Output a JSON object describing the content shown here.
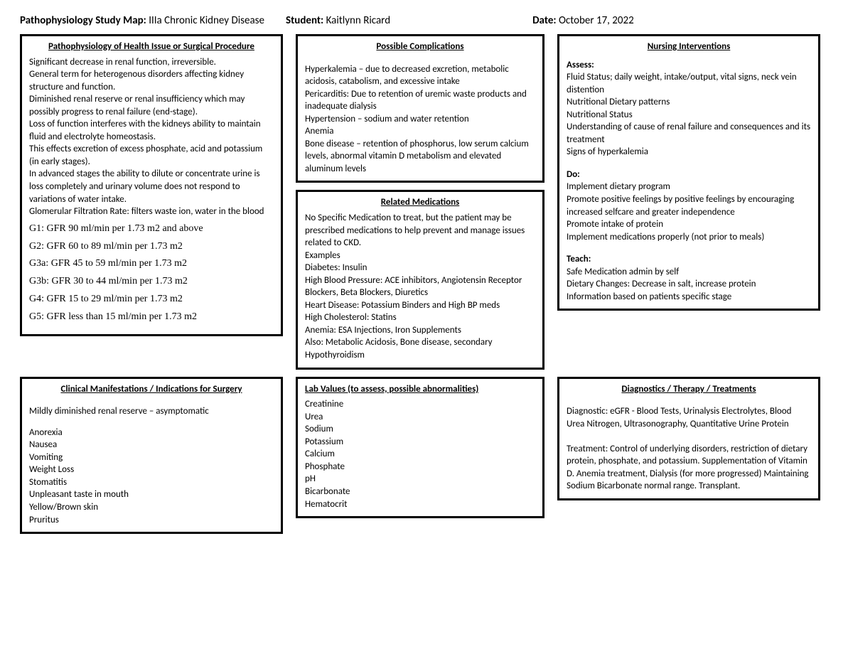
{
  "header": {
    "title_label": "Pathophysiology Study Map:",
    "title_value": "IIIa Chronic Kidney Disease",
    "student_label": "Student:",
    "student_value": "Kaitlynn Ricard",
    "date_label": "Date:",
    "date_value": "October 17, 2022"
  },
  "patho": {
    "title": "Pathophysiology of Health Issue or Surgical Procedure",
    "body": [
      "Significant decrease in renal function, irreversible.",
      "General term for heterogenous disorders affecting kidney structure and function.",
      "Diminished renal reserve or renal insufficiency which may possibly progress to renal failure (end-stage).",
      "Loss of function interferes with the kidneys ability to maintain fluid and electrolyte homeostasis.",
      "This effects excretion of excess phosphate, acid and potassium (in early stages).",
      "In advanced stages the ability to dilute or concentrate urine is loss completely and urinary volume does not respond to variations of water intake.",
      "Glomerular Filtration Rate: filters waste ion, water in the blood"
    ],
    "gfr": [
      "G1: GFR 90 ml/min per 1.73 m2 and above",
      "G2: GFR 60 to 89 ml/min per 1.73 m2",
      "G3a: GFR 45 to 59 ml/min per 1.73 m2",
      "G3b: GFR 30 to 44 ml/min per 1.73 m2",
      "G4: GFR 15 to 29 ml/min per 1.73 m2",
      "G5: GFR less than 15 ml/min per 1.73 m2"
    ]
  },
  "complications": {
    "title": "Possible Complications",
    "body": [
      "Hyperkalemia – due to decreased excretion, metabolic acidosis, catabolism, and excessive intake",
      "Pericarditis: Due to retention of uremic waste products and inadequate dialysis",
      "Hypertension – sodium and water retention",
      "Anemia",
      "Bone disease – retention of phosphorus, low serum calcium levels, abnormal vitamin D metabolism and elevated aluminum levels"
    ]
  },
  "meds": {
    "title": "Related Medications",
    "body": [
      "No Specific Medication to treat, but the patient may be prescribed medications to help prevent and manage issues related to CKD.",
      "Examples",
      "Diabetes: Insulin",
      "High Blood Pressure: ACE inhibitors, Angiotensin Receptor Blockers, Beta Blockers, Diuretics",
      "Heart Disease: Potassium Binders and High BP meds",
      "High Cholesterol: Statins",
      "Anemia: ESA Injections, Iron Supplements",
      "Also: Metabolic Acidosis, Bone disease, secondary Hypothyroidism"
    ]
  },
  "nursing": {
    "title": "Nursing Interventions",
    "assess_label": "Assess:",
    "assess": [
      "Fluid Status; daily weight, intake/output, vital signs, neck vein distention",
      "Nutritional Dietary patterns",
      "Nutritional Status",
      "Understanding of cause of renal failure and consequences and its treatment",
      "Signs of hyperkalemia"
    ],
    "do_label": "Do:",
    "do": [
      "Implement dietary program",
      "Promote positive feelings by positive feelings by encouraging increased selfcare and greater independence",
      "Promote intake of protein",
      "Implement medications properly (not prior to meals)"
    ],
    "teach_label": "Teach:",
    "teach": [
      "Safe Medication admin by self",
      "Dietary Changes: Decrease in salt, increase protein",
      "Information based on patients specific stage"
    ]
  },
  "manifest": {
    "title": "Clinical Manifestations / Indications for Surgery",
    "lead": "Mildly diminished renal reserve – asymptomatic",
    "items": [
      "Anorexia",
      "Nausea",
      "Vomiting",
      "Weight Loss",
      "Stomatitis",
      "Unpleasant taste in mouth",
      "Yellow/Brown skin",
      "Pruritus"
    ]
  },
  "labs": {
    "title": "Lab Values (to assess, possible abnormalities)",
    "items": [
      "Creatinine",
      "Urea",
      "Sodium",
      "Potassium",
      "Calcium",
      "Phosphate",
      "pH",
      "Bicarbonate",
      "Hematocrit"
    ]
  },
  "diag": {
    "title": "Diagnostics / Therapy / Treatments",
    "body": [
      "Diagnostic:  eGFR - Blood Tests, Urinalysis Electrolytes, Blood Urea Nitrogen, Ultrasonography, Quantitative Urine Protein",
      "",
      "Treatment: Control of underlying disorders, restriction of dietary protein, phosphate, and potassium. Supplementation of Vitamin D. Anemia treatment, Dialysis (for more progressed) Maintaining Sodium Bicarbonate normal range. Transplant."
    ]
  }
}
